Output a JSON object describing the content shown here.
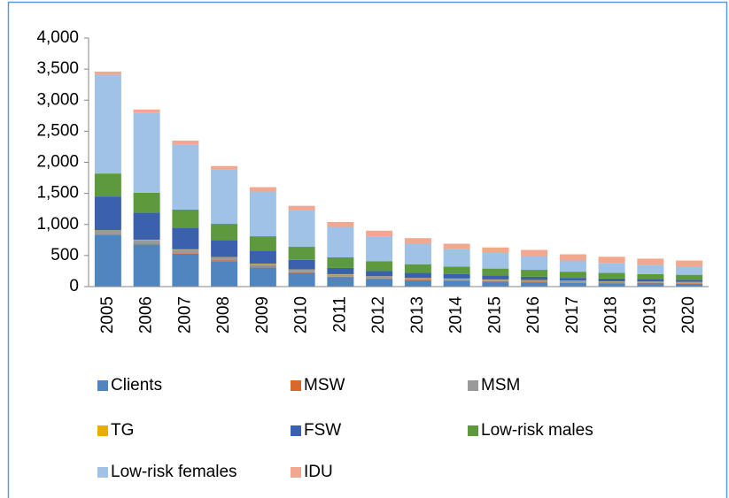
{
  "chart_data": {
    "type": "stacked-bar",
    "categories": [
      "2005",
      "2006",
      "2007",
      "2008",
      "2009",
      "2010",
      "2011",
      "2012",
      "2013",
      "2014",
      "2015",
      "2016",
      "2017",
      "2018",
      "2019",
      "2020"
    ],
    "series": [
      {
        "name": "Clients",
        "color": "#4f86c0",
        "values": [
          830,
          680,
          530,
          410,
          310,
          220,
          150,
          120,
          100,
          90,
          80,
          70,
          60,
          55,
          50,
          45
        ]
      },
      {
        "name": "MSW",
        "color": "#d9692a",
        "values": [
          10,
          10,
          10,
          10,
          10,
          10,
          10,
          10,
          10,
          10,
          10,
          10,
          10,
          10,
          10,
          10
        ]
      },
      {
        "name": "MSM",
        "color": "#9a9a9a",
        "values": [
          60,
          60,
          55,
          50,
          45,
          40,
          35,
          30,
          25,
          25,
          20,
          20,
          20,
          15,
          15,
          15
        ]
      },
      {
        "name": "TG",
        "color": "#e6ae00",
        "values": [
          5,
          5,
          5,
          5,
          5,
          5,
          5,
          5,
          5,
          5,
          5,
          5,
          5,
          5,
          5,
          5
        ]
      },
      {
        "name": "FSW",
        "color": "#3a60ae",
        "values": [
          545,
          435,
          350,
          275,
          210,
          155,
          100,
          85,
          80,
          70,
          65,
          55,
          45,
          45,
          40,
          35
        ]
      },
      {
        "name": "Low-risk males",
        "color": "#5d9a3e",
        "values": [
          370,
          320,
          290,
          260,
          230,
          210,
          170,
          160,
          140,
          120,
          110,
          110,
          100,
          90,
          80,
          80
        ]
      },
      {
        "name": "Low-risk females",
        "color": "#9fc2e6",
        "values": [
          1590,
          1290,
          1050,
          870,
          720,
          590,
          490,
          400,
          330,
          280,
          250,
          220,
          180,
          160,
          150,
          130
        ]
      },
      {
        "name": "IDU",
        "color": "#f2a88e",
        "values": [
          50,
          50,
          60,
          60,
          70,
          70,
          80,
          90,
          90,
          90,
          90,
          100,
          100,
          100,
          100,
          100
        ]
      }
    ],
    "ylim": [
      0,
      4000
    ],
    "yticks": [
      0,
      500,
      {
        "value": 1000,
        "label": "1,000"
      },
      {
        "value": 1500,
        "label": "1,500"
      },
      {
        "value": 2000,
        "label": "2,000"
      },
      {
        "value": 2500,
        "label": "2,500"
      },
      {
        "value": 3000,
        "label": "3,000"
      },
      {
        "value": 3500,
        "label": "3,500"
      },
      {
        "value": 4000,
        "label": "4,000"
      }
    ]
  }
}
